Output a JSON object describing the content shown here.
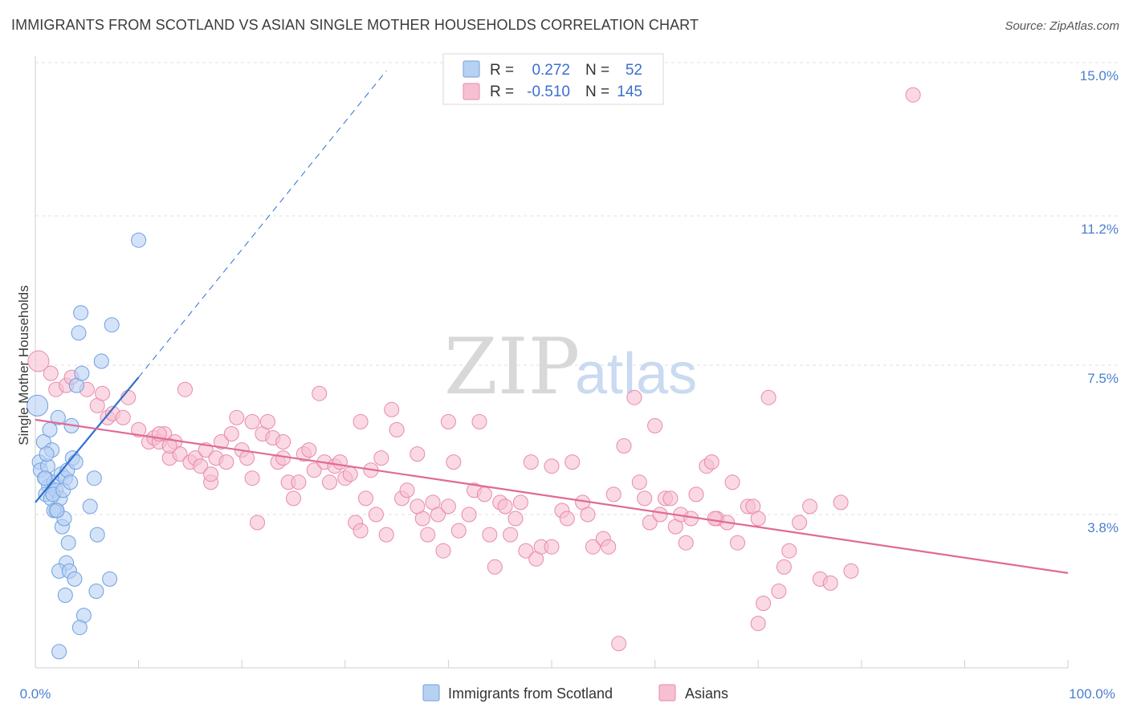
{
  "title": "IMMIGRANTS FROM SCOTLAND VS ASIAN SINGLE MOTHER HOUSEHOLDS CORRELATION CHART",
  "source": "Source: ZipAtlas.com",
  "watermark": {
    "zip": "ZIP",
    "atlas": "atlas"
  },
  "legend": {
    "r_label": "R =",
    "n_label": "N =",
    "rows": [
      {
        "r": "0.272",
        "n": "52",
        "fill": "#b7d1f3",
        "stroke": "#6fa0e0"
      },
      {
        "r": "-0.510",
        "n": "145",
        "fill": "#f7bfd2",
        "stroke": "#e88aaa"
      }
    ]
  },
  "chart_data": {
    "type": "scatter",
    "xlabel": "",
    "ylabel": "Single Mother Households",
    "xlim": [
      0,
      100
    ],
    "ylim": [
      0,
      15.0
    ],
    "x_ticks": [
      "0.0%",
      "100.0%"
    ],
    "y_ticks": [
      {
        "v": 3.8,
        "label": "3.8%"
      },
      {
        "v": 7.5,
        "label": "7.5%"
      },
      {
        "v": 11.2,
        "label": "11.2%"
      },
      {
        "v": 15.0,
        "label": "15.0%"
      }
    ],
    "grid": true,
    "series": [
      {
        "name": "Immigrants from Scotland",
        "color": "#6fa0e0",
        "fill": "#b7d1f3",
        "trend": {
          "x": [
            0,
            10
          ],
          "y": [
            4.1,
            7.2
          ],
          "dash_to": [
            34,
            14.8
          ],
          "color": "#2e6fd0"
        },
        "points": [
          [
            0.2,
            6.5
          ],
          [
            0.4,
            5.1
          ],
          [
            0.5,
            4.9
          ],
          [
            0.8,
            5.6
          ],
          [
            1.0,
            4.7
          ],
          [
            1.2,
            5.0
          ],
          [
            1.3,
            4.5
          ],
          [
            1.0,
            4.3
          ],
          [
            1.5,
            4.2
          ],
          [
            1.6,
            5.4
          ],
          [
            1.8,
            4.6
          ],
          [
            2.0,
            3.9
          ],
          [
            1.4,
            5.9
          ],
          [
            2.2,
            6.2
          ],
          [
            2.5,
            4.8
          ],
          [
            2.0,
            4.4
          ],
          [
            1.8,
            3.9
          ],
          [
            2.6,
            3.5
          ],
          [
            2.9,
            4.7
          ],
          [
            3.1,
            4.9
          ],
          [
            3.5,
            6.0
          ],
          [
            2.4,
            4.2
          ],
          [
            2.8,
            3.7
          ],
          [
            3.2,
            3.1
          ],
          [
            3.6,
            5.2
          ],
          [
            3.0,
            2.6
          ],
          [
            2.3,
            2.4
          ],
          [
            3.3,
            2.4
          ],
          [
            3.8,
            2.2
          ],
          [
            4.0,
            7.0
          ],
          [
            4.5,
            7.3
          ],
          [
            4.2,
            8.3
          ],
          [
            4.4,
            8.8
          ],
          [
            5.3,
            4.0
          ],
          [
            5.7,
            4.7
          ],
          [
            6.0,
            3.3
          ],
          [
            6.4,
            7.6
          ],
          [
            7.2,
            2.2
          ],
          [
            5.9,
            1.9
          ],
          [
            7.4,
            8.5
          ],
          [
            2.9,
            1.8
          ],
          [
            4.7,
            1.3
          ],
          [
            4.3,
            1.0
          ],
          [
            2.3,
            0.4
          ],
          [
            10.0,
            10.6
          ],
          [
            2.1,
            3.9
          ],
          [
            1.7,
            4.3
          ],
          [
            3.9,
            5.1
          ],
          [
            2.7,
            4.4
          ],
          [
            1.1,
            5.3
          ],
          [
            0.9,
            4.7
          ],
          [
            3.4,
            4.6
          ]
        ]
      },
      {
        "name": "Asians",
        "color": "#e88aaa",
        "fill": "#f7bfd2",
        "trend": {
          "x": [
            0,
            100
          ],
          "y": [
            6.15,
            2.35
          ],
          "color": "#e06a96"
        },
        "points": [
          [
            0.3,
            7.6
          ],
          [
            1.5,
            7.3
          ],
          [
            2.0,
            6.9
          ],
          [
            3.0,
            7.0
          ],
          [
            3.5,
            7.2
          ],
          [
            5.0,
            6.9
          ],
          [
            6.0,
            6.5
          ],
          [
            6.5,
            6.8
          ],
          [
            7.0,
            6.2
          ],
          [
            7.5,
            6.3
          ],
          [
            8.5,
            6.2
          ],
          [
            9.0,
            6.7
          ],
          [
            10.0,
            5.9
          ],
          [
            11.0,
            5.6
          ],
          [
            11.5,
            5.7
          ],
          [
            12.0,
            5.6
          ],
          [
            12.5,
            5.8
          ],
          [
            13.0,
            5.2
          ],
          [
            13.5,
            5.6
          ],
          [
            14.0,
            5.3
          ],
          [
            14.5,
            6.9
          ],
          [
            15.0,
            5.1
          ],
          [
            15.5,
            5.2
          ],
          [
            16.0,
            5.0
          ],
          [
            16.5,
            5.4
          ],
          [
            17.0,
            4.6
          ],
          [
            17.5,
            5.2
          ],
          [
            18.0,
            5.6
          ],
          [
            18.5,
            5.1
          ],
          [
            19.0,
            5.8
          ],
          [
            19.5,
            6.2
          ],
          [
            20.0,
            5.4
          ],
          [
            20.5,
            5.2
          ],
          [
            21.0,
            4.7
          ],
          [
            21.5,
            3.6
          ],
          [
            22.0,
            5.8
          ],
          [
            22.5,
            6.1
          ],
          [
            23.0,
            5.7
          ],
          [
            23.5,
            5.1
          ],
          [
            24.0,
            5.2
          ],
          [
            24.5,
            4.6
          ],
          [
            25.0,
            4.2
          ],
          [
            25.5,
            4.6
          ],
          [
            26.0,
            5.3
          ],
          [
            26.5,
            5.4
          ],
          [
            27.0,
            4.9
          ],
          [
            27.5,
            6.8
          ],
          [
            28.0,
            5.1
          ],
          [
            28.5,
            4.6
          ],
          [
            29.0,
            5.0
          ],
          [
            29.5,
            5.1
          ],
          [
            30.0,
            4.7
          ],
          [
            30.5,
            4.8
          ],
          [
            31.0,
            3.6
          ],
          [
            31.5,
            3.4
          ],
          [
            32.0,
            4.2
          ],
          [
            32.5,
            4.9
          ],
          [
            33.0,
            3.8
          ],
          [
            33.5,
            5.2
          ],
          [
            34.0,
            3.3
          ],
          [
            34.5,
            6.4
          ],
          [
            35.0,
            5.9
          ],
          [
            35.5,
            4.2
          ],
          [
            36.0,
            4.4
          ],
          [
            37.0,
            5.3
          ],
          [
            37.5,
            3.7
          ],
          [
            38.0,
            3.3
          ],
          [
            38.5,
            4.1
          ],
          [
            39.0,
            3.8
          ],
          [
            39.5,
            2.9
          ],
          [
            40.0,
            6.1
          ],
          [
            40.5,
            5.1
          ],
          [
            41.0,
            3.4
          ],
          [
            42.0,
            3.8
          ],
          [
            42.5,
            4.4
          ],
          [
            43.0,
            6.1
          ],
          [
            43.5,
            4.3
          ],
          [
            44.0,
            3.3
          ],
          [
            44.5,
            2.5
          ],
          [
            45.0,
            4.1
          ],
          [
            46.0,
            3.3
          ],
          [
            46.5,
            3.7
          ],
          [
            47.0,
            4.1
          ],
          [
            47.5,
            2.9
          ],
          [
            48.0,
            5.1
          ],
          [
            48.5,
            2.7
          ],
          [
            49.0,
            3.0
          ],
          [
            50.0,
            5.0
          ],
          [
            51.0,
            3.9
          ],
          [
            51.5,
            3.7
          ],
          [
            52.0,
            5.1
          ],
          [
            53.0,
            4.1
          ],
          [
            53.5,
            3.8
          ],
          [
            54.0,
            3.0
          ],
          [
            55.0,
            3.2
          ],
          [
            55.5,
            3.0
          ],
          [
            56.0,
            4.3
          ],
          [
            57.0,
            5.5
          ],
          [
            58.0,
            6.7
          ],
          [
            58.5,
            4.6
          ],
          [
            59.0,
            4.2
          ],
          [
            59.5,
            3.6
          ],
          [
            60.0,
            6.0
          ],
          [
            61.0,
            4.2
          ],
          [
            61.5,
            4.2
          ],
          [
            62.0,
            3.5
          ],
          [
            62.5,
            3.8
          ],
          [
            63.0,
            3.1
          ],
          [
            63.5,
            3.7
          ],
          [
            64.0,
            4.3
          ],
          [
            65.0,
            5.0
          ],
          [
            65.5,
            5.1
          ],
          [
            66.0,
            3.7
          ],
          [
            67.0,
            3.6
          ],
          [
            67.5,
            4.6
          ],
          [
            68.0,
            3.1
          ],
          [
            69.0,
            4.0
          ],
          [
            70.0,
            1.1
          ],
          [
            70.5,
            1.6
          ],
          [
            71.0,
            6.7
          ],
          [
            72.0,
            1.9
          ],
          [
            72.5,
            2.5
          ],
          [
            73.0,
            2.9
          ],
          [
            74.0,
            3.6
          ],
          [
            75.0,
            4.0
          ],
          [
            76.0,
            2.2
          ],
          [
            77.0,
            2.1
          ],
          [
            78.0,
            4.1
          ],
          [
            79.0,
            2.4
          ],
          [
            85.0,
            14.2
          ],
          [
            56.5,
            0.6
          ],
          [
            65.8,
            3.7
          ],
          [
            69.5,
            4.0
          ],
          [
            24.0,
            5.6
          ],
          [
            12.0,
            5.8
          ],
          [
            13.0,
            5.5
          ],
          [
            31.5,
            6.1
          ],
          [
            37.0,
            4.0
          ],
          [
            45.5,
            4.0
          ],
          [
            50.0,
            3.0
          ],
          [
            60.5,
            3.8
          ],
          [
            70.0,
            3.7
          ],
          [
            40.0,
            4.0
          ],
          [
            21.0,
            6.1
          ],
          [
            17.0,
            4.8
          ]
        ]
      }
    ]
  }
}
